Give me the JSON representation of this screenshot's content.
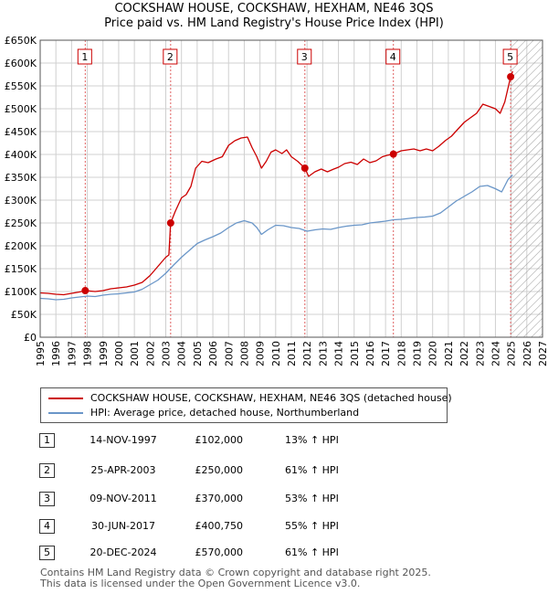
{
  "chart_data": {
    "type": "line",
    "title": "COCKSHAW HOUSE, COCKSHAW, HEXHAM, NE46 3QS",
    "subtitle": "Price paid vs. HM Land Registry's House Price Index (HPI)",
    "xlim": [
      1995,
      2027
    ],
    "ylim": [
      0,
      650000
    ],
    "x_ticks": [
      "1995",
      "1996",
      "1997",
      "1998",
      "1999",
      "2000",
      "2001",
      "2002",
      "2003",
      "2004",
      "2005",
      "2006",
      "2007",
      "2008",
      "2009",
      "2010",
      "2011",
      "2012",
      "2013",
      "2014",
      "2015",
      "2016",
      "2017",
      "2018",
      "2019",
      "2020",
      "2021",
      "2022",
      "2023",
      "2024",
      "2025",
      "2026",
      "2027"
    ],
    "y_ticks": [
      {
        "value": 0,
        "label": "£0"
      },
      {
        "value": 50000,
        "label": "£50K"
      },
      {
        "value": 100000,
        "label": "£100K"
      },
      {
        "value": 150000,
        "label": "£150K"
      },
      {
        "value": 200000,
        "label": "£200K"
      },
      {
        "value": 250000,
        "label": "£250K"
      },
      {
        "value": 300000,
        "label": "£300K"
      },
      {
        "value": 350000,
        "label": "£350K"
      },
      {
        "value": 400000,
        "label": "£400K"
      },
      {
        "value": 450000,
        "label": "£450K"
      },
      {
        "value": 500000,
        "label": "£500K"
      },
      {
        "value": 550000,
        "label": "£550K"
      },
      {
        "value": 600000,
        "label": "£600K"
      },
      {
        "value": 650000,
        "label": "£650K"
      }
    ],
    "grid": true,
    "forecast_hatch_from": 2025.0,
    "series": [
      {
        "name": "COCKSHAW HOUSE, COCKSHAW, HEXHAM, NE46 3QS (detached house)",
        "color": "#cc0000",
        "points": [
          [
            1995.0,
            97000
          ],
          [
            1995.5,
            96000
          ],
          [
            1996.0,
            94000
          ],
          [
            1996.5,
            93000
          ],
          [
            1997.0,
            96000
          ],
          [
            1997.5,
            99000
          ],
          [
            1997.87,
            102000
          ],
          [
            1998.5,
            100000
          ],
          [
            1999.0,
            102000
          ],
          [
            1999.5,
            106000
          ],
          [
            2000.0,
            108000
          ],
          [
            2000.5,
            110000
          ],
          [
            2001.0,
            114000
          ],
          [
            2001.5,
            120000
          ],
          [
            2002.0,
            135000
          ],
          [
            2002.5,
            155000
          ],
          [
            2003.0,
            175000
          ],
          [
            2003.2,
            180000
          ],
          [
            2003.31,
            250000
          ],
          [
            2003.6,
            275000
          ],
          [
            2004.0,
            305000
          ],
          [
            2004.3,
            312000
          ],
          [
            2004.6,
            330000
          ],
          [
            2004.9,
            370000
          ],
          [
            2005.3,
            385000
          ],
          [
            2005.7,
            382000
          ],
          [
            2006.2,
            390000
          ],
          [
            2006.6,
            395000
          ],
          [
            2007.0,
            420000
          ],
          [
            2007.4,
            430000
          ],
          [
            2007.8,
            436000
          ],
          [
            2008.2,
            438000
          ],
          [
            2008.5,
            415000
          ],
          [
            2008.8,
            395000
          ],
          [
            2009.1,
            370000
          ],
          [
            2009.4,
            385000
          ],
          [
            2009.7,
            405000
          ],
          [
            2010.0,
            410000
          ],
          [
            2010.4,
            402000
          ],
          [
            2010.7,
            410000
          ],
          [
            2011.0,
            395000
          ],
          [
            2011.4,
            385000
          ],
          [
            2011.86,
            370000
          ],
          [
            2012.1,
            352000
          ],
          [
            2012.5,
            362000
          ],
          [
            2012.9,
            368000
          ],
          [
            2013.3,
            362000
          ],
          [
            2013.7,
            368000
          ],
          [
            2014.0,
            372000
          ],
          [
            2014.4,
            380000
          ],
          [
            2014.8,
            383000
          ],
          [
            2015.2,
            378000
          ],
          [
            2015.6,
            390000
          ],
          [
            2016.0,
            382000
          ],
          [
            2016.4,
            386000
          ],
          [
            2016.8,
            395000
          ],
          [
            2017.1,
            398000
          ],
          [
            2017.5,
            400750
          ],
          [
            2018.0,
            408000
          ],
          [
            2018.4,
            410000
          ],
          [
            2018.8,
            412000
          ],
          [
            2019.2,
            408000
          ],
          [
            2019.6,
            412000
          ],
          [
            2020.0,
            408000
          ],
          [
            2020.4,
            418000
          ],
          [
            2020.8,
            430000
          ],
          [
            2021.2,
            440000
          ],
          [
            2021.6,
            455000
          ],
          [
            2022.0,
            470000
          ],
          [
            2022.4,
            480000
          ],
          [
            2022.8,
            490000
          ],
          [
            2023.2,
            510000
          ],
          [
            2023.6,
            505000
          ],
          [
            2024.0,
            500000
          ],
          [
            2024.3,
            490000
          ],
          [
            2024.6,
            515000
          ],
          [
            2024.97,
            570000
          ],
          [
            2025.1,
            582000
          ]
        ]
      },
      {
        "name": "HPI: Average price, detached house, Northumberland",
        "color": "#6a96c8",
        "points": [
          [
            1995.0,
            85000
          ],
          [
            1995.5,
            84000
          ],
          [
            1996.0,
            82000
          ],
          [
            1996.5,
            83000
          ],
          [
            1997.0,
            86000
          ],
          [
            1997.5,
            88000
          ],
          [
            1998.0,
            90000
          ],
          [
            1998.5,
            89000
          ],
          [
            1999.0,
            92000
          ],
          [
            1999.5,
            94000
          ],
          [
            2000.0,
            95000
          ],
          [
            2000.5,
            97000
          ],
          [
            2001.0,
            99000
          ],
          [
            2001.5,
            105000
          ],
          [
            2002.0,
            115000
          ],
          [
            2002.5,
            125000
          ],
          [
            2003.0,
            140000
          ],
          [
            2003.5,
            158000
          ],
          [
            2004.0,
            175000
          ],
          [
            2004.5,
            190000
          ],
          [
            2005.0,
            205000
          ],
          [
            2005.5,
            213000
          ],
          [
            2006.0,
            220000
          ],
          [
            2006.5,
            228000
          ],
          [
            2007.0,
            240000
          ],
          [
            2007.5,
            250000
          ],
          [
            2008.0,
            255000
          ],
          [
            2008.5,
            250000
          ],
          [
            2008.8,
            240000
          ],
          [
            2009.1,
            225000
          ],
          [
            2009.5,
            235000
          ],
          [
            2010.0,
            245000
          ],
          [
            2010.5,
            244000
          ],
          [
            2011.0,
            240000
          ],
          [
            2011.5,
            238000
          ],
          [
            2012.0,
            232000
          ],
          [
            2012.5,
            235000
          ],
          [
            2013.0,
            237000
          ],
          [
            2013.5,
            236000
          ],
          [
            2014.0,
            240000
          ],
          [
            2014.5,
            243000
          ],
          [
            2015.0,
            245000
          ],
          [
            2015.5,
            246000
          ],
          [
            2016.0,
            250000
          ],
          [
            2016.5,
            252000
          ],
          [
            2017.0,
            254000
          ],
          [
            2017.5,
            257000
          ],
          [
            2018.0,
            258000
          ],
          [
            2018.5,
            260000
          ],
          [
            2019.0,
            262000
          ],
          [
            2019.5,
            263000
          ],
          [
            2020.0,
            265000
          ],
          [
            2020.5,
            272000
          ],
          [
            2021.0,
            285000
          ],
          [
            2021.5,
            298000
          ],
          [
            2022.0,
            308000
          ],
          [
            2022.5,
            318000
          ],
          [
            2023.0,
            330000
          ],
          [
            2023.5,
            332000
          ],
          [
            2024.0,
            325000
          ],
          [
            2024.4,
            318000
          ],
          [
            2024.8,
            345000
          ],
          [
            2025.1,
            355000
          ]
        ]
      }
    ],
    "sales": [
      {
        "id": "1",
        "x": 1997.87,
        "y": 102000
      },
      {
        "id": "2",
        "x": 2003.31,
        "y": 250000
      },
      {
        "id": "3",
        "x": 2011.86,
        "y": 370000
      },
      {
        "id": "4",
        "x": 2017.5,
        "y": 400750
      },
      {
        "id": "5",
        "x": 2024.97,
        "y": 570000
      }
    ]
  },
  "legend": [
    {
      "label": "COCKSHAW HOUSE, COCKSHAW, HEXHAM, NE46 3QS (detached house)",
      "color": "#cc0000"
    },
    {
      "label": "HPI: Average price, detached house, Northumberland",
      "color": "#6a96c8"
    }
  ],
  "transactions": [
    {
      "num": "1",
      "date": "14-NOV-1997",
      "price": "£102,000",
      "hpi": "13% ↑ HPI"
    },
    {
      "num": "2",
      "date": "25-APR-2003",
      "price": "£250,000",
      "hpi": "61% ↑ HPI"
    },
    {
      "num": "3",
      "date": "09-NOV-2011",
      "price": "£370,000",
      "hpi": "53% ↑ HPI"
    },
    {
      "num": "4",
      "date": "30-JUN-2017",
      "price": "£400,750",
      "hpi": "55% ↑ HPI"
    },
    {
      "num": "5",
      "date": "20-DEC-2024",
      "price": "£570,000",
      "hpi": "61% ↑ HPI"
    }
  ],
  "footer": {
    "line1": "Contains HM Land Registry data © Crown copyright and database right 2025.",
    "line2": "This data is licensed under the Open Government Licence v3.0."
  }
}
